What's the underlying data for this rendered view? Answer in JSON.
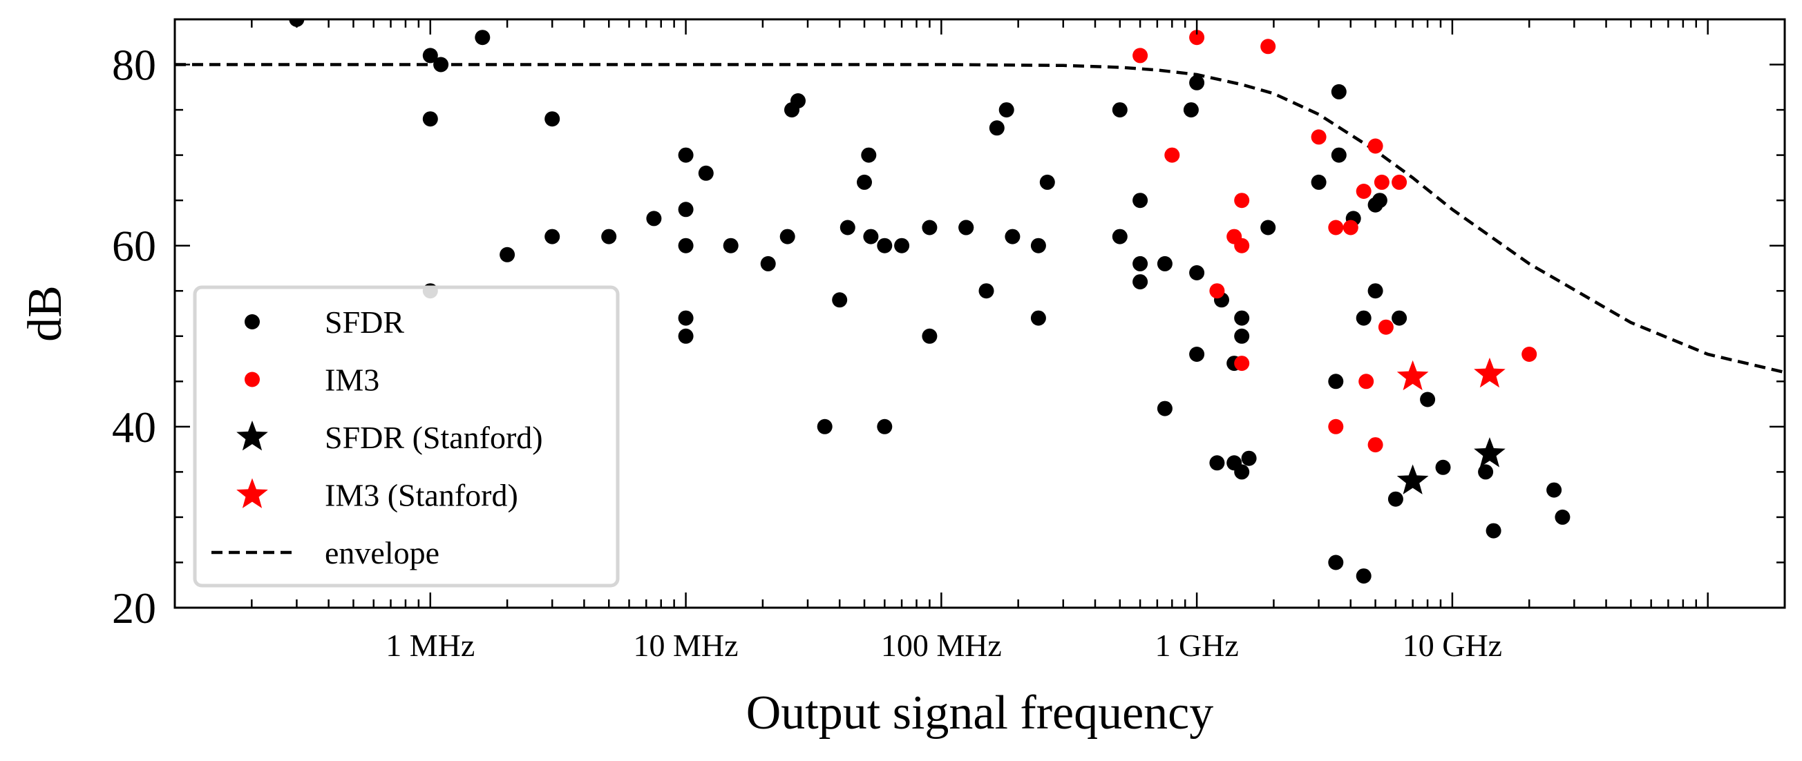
{
  "chart_data": {
    "type": "scatter",
    "xlabel": "Output signal frequency",
    "ylabel": "dB",
    "xscale": "log",
    "xlim": [
      100000,
      200000000000
    ],
    "ylim": [
      20,
      85
    ],
    "x_ticks": [
      {
        "value": 1000000,
        "label": "1 MHz"
      },
      {
        "value": 10000000,
        "label": "10 MHz"
      },
      {
        "value": 100000000,
        "label": "100 MHz"
      },
      {
        "value": 1000000000,
        "label": "1 GHz"
      },
      {
        "value": 10000000000,
        "label": "10 GHz"
      }
    ],
    "y_ticks": [
      {
        "value": 20,
        "label": "20"
      },
      {
        "value": 40,
        "label": "40"
      },
      {
        "value": 60,
        "label": "60"
      },
      {
        "value": 80,
        "label": "80"
      }
    ],
    "legend_position": "lower-left",
    "series": [
      {
        "name": "SFDR",
        "color": "#000000",
        "marker": "circle",
        "points": [
          [
            300000,
            85
          ],
          [
            1000000,
            81
          ],
          [
            1100000,
            80
          ],
          [
            1600000,
            83
          ],
          [
            1000000,
            74
          ],
          [
            3000000,
            74
          ],
          [
            1000000,
            55
          ],
          [
            2000000,
            59
          ],
          [
            3000000,
            61
          ],
          [
            5000000,
            61
          ],
          [
            7500000,
            63
          ],
          [
            10000000,
            70
          ],
          [
            10000000,
            64
          ],
          [
            10000000,
            60
          ],
          [
            10000000,
            52
          ],
          [
            10000000,
            50
          ],
          [
            12000000,
            68
          ],
          [
            15000000,
            60
          ],
          [
            21000000,
            58
          ],
          [
            25000000,
            61
          ],
          [
            26000000,
            75
          ],
          [
            27500000,
            76
          ],
          [
            35000000,
            40
          ],
          [
            40000000,
            54
          ],
          [
            43000000,
            62
          ],
          [
            50000000,
            67
          ],
          [
            52000000,
            70
          ],
          [
            53000000,
            61
          ],
          [
            60000000,
            60
          ],
          [
            60000000,
            40
          ],
          [
            70000000,
            60
          ],
          [
            90000000,
            62
          ],
          [
            90000000,
            50
          ],
          [
            125000000,
            62
          ],
          [
            125000000,
            62
          ],
          [
            150000000,
            55
          ],
          [
            165000000,
            73
          ],
          [
            180000000,
            75
          ],
          [
            190000000,
            61
          ],
          [
            240000000,
            60
          ],
          [
            240000000,
            52
          ],
          [
            260000000,
            67
          ],
          [
            500000000,
            75
          ],
          [
            500000000,
            61
          ],
          [
            600000000,
            65
          ],
          [
            600000000,
            58
          ],
          [
            600000000,
            56
          ],
          [
            750000000,
            58
          ],
          [
            750000000,
            42
          ],
          [
            950000000,
            75
          ],
          [
            1000000000,
            78
          ],
          [
            1000000000,
            57
          ],
          [
            1000000000,
            48
          ],
          [
            1200000000,
            36
          ],
          [
            1250000000,
            54
          ],
          [
            1400000000,
            47
          ],
          [
            1400000000,
            36
          ],
          [
            1500000000,
            52
          ],
          [
            1500000000,
            50
          ],
          [
            1500000000,
            35
          ],
          [
            1600000000,
            36.5
          ],
          [
            1900000000,
            62
          ],
          [
            3000000000,
            67
          ],
          [
            3500000000,
            45
          ],
          [
            3500000000,
            25
          ],
          [
            3600000000,
            77
          ],
          [
            3600000000,
            70
          ],
          [
            4100000000,
            63
          ],
          [
            4500000000,
            52
          ],
          [
            4500000000,
            23.5
          ],
          [
            5000000000,
            55
          ],
          [
            5000000000,
            64.5
          ],
          [
            5200000000,
            65
          ],
          [
            6200000000,
            52
          ],
          [
            6000000000,
            32
          ],
          [
            8000000000,
            43
          ],
          [
            9200000000,
            35.5
          ],
          [
            13500000000,
            35
          ],
          [
            14500000000,
            28.5
          ],
          [
            25000000000,
            33
          ],
          [
            27000000000,
            30
          ]
        ]
      },
      {
        "name": "IM3",
        "color": "#ff0000",
        "marker": "circle",
        "points": [
          [
            600000000,
            81
          ],
          [
            1000000000,
            83
          ],
          [
            1900000000,
            82
          ],
          [
            800000000,
            70
          ],
          [
            1200000000,
            55
          ],
          [
            1400000000,
            61
          ],
          [
            1500000000,
            65
          ],
          [
            1500000000,
            60
          ],
          [
            1500000000,
            47
          ],
          [
            3000000000,
            72
          ],
          [
            3500000000,
            62
          ],
          [
            3500000000,
            40
          ],
          [
            4000000000,
            62
          ],
          [
            4500000000,
            66
          ],
          [
            4600000000,
            45
          ],
          [
            5000000000,
            71
          ],
          [
            5000000000,
            38
          ],
          [
            5300000000,
            67
          ],
          [
            5500000000,
            51
          ],
          [
            6200000000,
            67
          ],
          [
            20000000000,
            48
          ]
        ]
      },
      {
        "name": "SFDR (Stanford)",
        "color": "#000000",
        "marker": "star",
        "points": [
          [
            7000000000,
            34
          ],
          [
            14000000000,
            37
          ]
        ]
      },
      {
        "name": "IM3 (Stanford)",
        "color": "#ff0000",
        "marker": "star",
        "points": [
          [
            7000000000,
            45.5
          ],
          [
            14000000000,
            45.8
          ]
        ]
      },
      {
        "name": "envelope",
        "color": "#000000",
        "line_style": "dashed",
        "points": [
          [
            100000,
            80
          ],
          [
            1000000,
            80
          ],
          [
            10000000,
            80
          ],
          [
            100000000,
            80
          ],
          [
            300000000,
            79.9
          ],
          [
            500000000,
            79.7
          ],
          [
            700000000,
            79.4
          ],
          [
            1000000000,
            78.9
          ],
          [
            1500000000,
            77.8
          ],
          [
            2000000000,
            76.8
          ],
          [
            3000000000,
            74.5
          ],
          [
            5000000000,
            70.5
          ],
          [
            7000000000,
            67.5
          ],
          [
            10000000000,
            64
          ],
          [
            20000000000,
            58
          ],
          [
            50000000000,
            51.5
          ],
          [
            100000000000,
            48
          ],
          [
            200000000000,
            46
          ]
        ]
      }
    ]
  }
}
